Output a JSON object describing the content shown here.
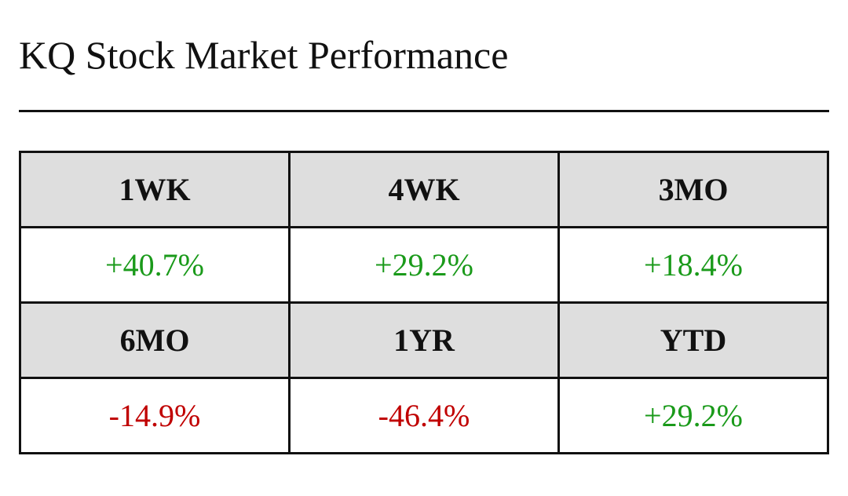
{
  "header": {
    "title": "KQ Stock Market Performance"
  },
  "table": {
    "groups": [
      {
        "labels": [
          "1WK",
          "4WK",
          "3MO"
        ],
        "values": [
          "+40.7%",
          "+29.2%",
          "+18.4%"
        ]
      },
      {
        "labels": [
          "6MO",
          "1YR",
          "YTD"
        ],
        "values": [
          "-14.9%",
          "-46.4%",
          "+29.2%"
        ]
      }
    ],
    "colors": {
      "up": "#1a9a1a",
      "down": "#c00000"
    }
  }
}
